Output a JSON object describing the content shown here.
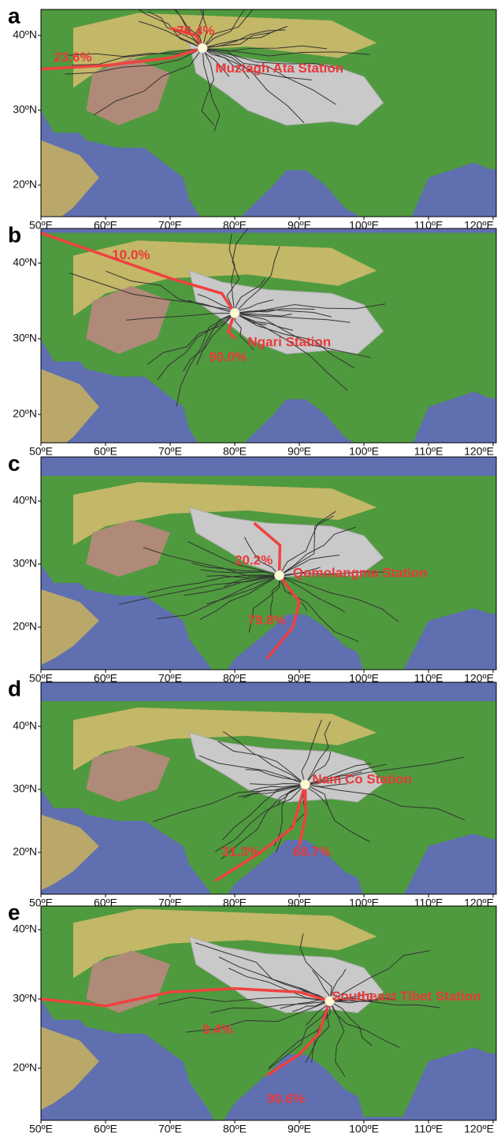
{
  "panels": [
    {
      "letter": "a",
      "station": "Muztagh Ata Station",
      "percentages": [
        "76.4%",
        "23.6%"
      ]
    },
    {
      "letter": "b",
      "station": "Ngari Station",
      "percentages": [
        "10.0%",
        "90.0%"
      ]
    },
    {
      "letter": "c",
      "station": "Qomolangma Station",
      "percentages": [
        "20.2%",
        "79.8%"
      ]
    },
    {
      "letter": "d",
      "station": "Nam Co Station",
      "percentages": [
        "31.3%",
        "68.7%"
      ]
    },
    {
      "letter": "e",
      "station": "Southeast Tibet Station",
      "percentages": [
        "9.4%",
        "90.6%"
      ]
    }
  ],
  "x_ticks": [
    "50ºE",
    "60ºE",
    "70ºE",
    "80ºE",
    "90ºE",
    "100ºE",
    "110ºE",
    "120ºE"
  ],
  "y_ticks": [
    "40ºN",
    "30ºN",
    "20ºN"
  ]
}
